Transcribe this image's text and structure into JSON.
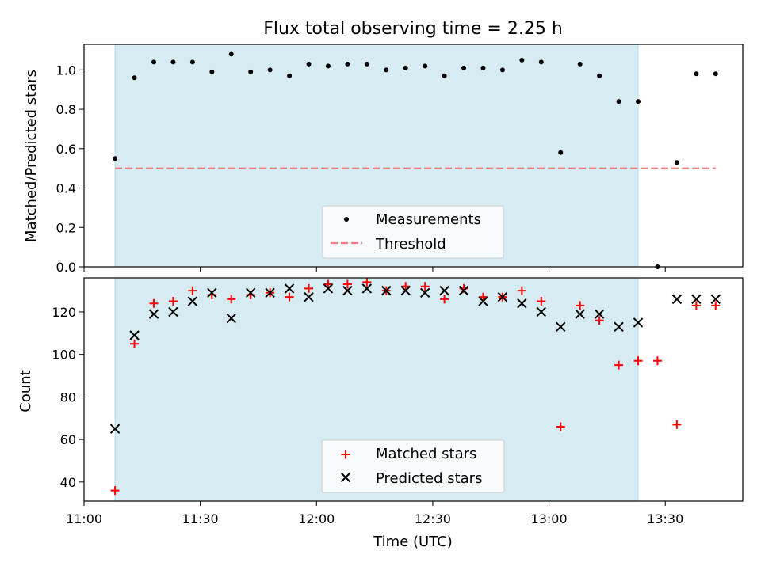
{
  "title": "Flux total observing time = 2.25 h",
  "colors": {
    "shade": "#add8e6",
    "threshold": "#f08080",
    "matched": "#ff0000",
    "predicted": "#000000",
    "measurement": "#000000"
  },
  "chart_data": [
    {
      "type": "scatter",
      "panel": "top",
      "title": "Flux total observing time = 2.25 h",
      "xlabel": "",
      "ylabel": "Matched/Predicted stars",
      "ylim": [
        0.0,
        1.13
      ],
      "yticks": [
        0.0,
        0.2,
        0.4,
        0.6,
        0.8,
        1.0
      ],
      "shaded_interval": [
        "11:08",
        "13:23"
      ],
      "legend": {
        "position": "lower center",
        "entries": [
          {
            "label": "Measurements",
            "marker": "dot"
          },
          {
            "label": "Threshold",
            "marker": "dashed-line"
          }
        ]
      },
      "threshold": {
        "value": 0.5,
        "x": [
          "11:08",
          "13:43"
        ]
      },
      "series": [
        {
          "name": "Measurements",
          "x": [
            "11:08",
            "11:13",
            "11:18",
            "11:23",
            "11:28",
            "11:33",
            "11:38",
            "11:43",
            "11:48",
            "11:53",
            "11:58",
            "12:03",
            "12:08",
            "12:13",
            "12:18",
            "12:23",
            "12:28",
            "12:33",
            "12:38",
            "12:43",
            "12:48",
            "12:53",
            "12:58",
            "13:03",
            "13:08",
            "13:13",
            "13:18",
            "13:23",
            "13:28",
            "13:33",
            "13:38",
            "13:43"
          ],
          "values": [
            0.55,
            0.96,
            1.04,
            1.04,
            1.04,
            0.99,
            1.08,
            0.99,
            1.0,
            0.97,
            1.03,
            1.02,
            1.03,
            1.03,
            1.0,
            1.01,
            1.02,
            0.97,
            1.01,
            1.01,
            1.0,
            1.05,
            1.04,
            0.58,
            1.03,
            0.97,
            0.84,
            0.84,
            0.0,
            0.53,
            0.98,
            0.98
          ]
        }
      ]
    },
    {
      "type": "scatter",
      "panel": "bottom",
      "xlabel": "Time (UTC)",
      "ylabel": "Count",
      "ylim": [
        31,
        136
      ],
      "yticks": [
        40,
        60,
        80,
        100,
        120
      ],
      "xlim": [
        "11:00",
        "13:50"
      ],
      "xticks": [
        "11:00",
        "11:30",
        "12:00",
        "12:30",
        "13:00",
        "13:30"
      ],
      "shaded_interval": [
        "11:08",
        "13:23"
      ],
      "legend": {
        "position": "lower center",
        "entries": [
          {
            "label": "Matched stars",
            "marker": "plus"
          },
          {
            "label": "Predicted stars",
            "marker": "x"
          }
        ]
      },
      "series": [
        {
          "name": "Matched stars",
          "x": [
            "11:08",
            "11:13",
            "11:18",
            "11:23",
            "11:28",
            "11:33",
            "11:38",
            "11:43",
            "11:48",
            "11:53",
            "11:58",
            "12:03",
            "12:08",
            "12:13",
            "12:18",
            "12:23",
            "12:28",
            "12:33",
            "12:38",
            "12:43",
            "12:48",
            "12:53",
            "12:58",
            "13:03",
            "13:08",
            "13:13",
            "13:18",
            "13:23",
            "13:28",
            "13:33",
            "13:38",
            "13:43"
          ],
          "values": [
            36,
            105,
            124,
            125,
            130,
            128,
            126,
            128,
            129,
            127,
            131,
            133,
            133,
            134,
            130,
            132,
            132,
            126,
            131,
            127,
            127,
            130,
            125,
            66,
            123,
            116,
            95,
            97,
            97,
            67,
            123,
            123
          ]
        },
        {
          "name": "Predicted stars",
          "x": [
            "11:08",
            "11:13",
            "11:18",
            "11:23",
            "11:28",
            "11:33",
            "11:38",
            "11:43",
            "11:48",
            "11:53",
            "11:58",
            "12:03",
            "12:08",
            "12:13",
            "12:18",
            "12:23",
            "12:28",
            "12:33",
            "12:38",
            "12:43",
            "12:48",
            "12:53",
            "12:58",
            "13:03",
            "13:08",
            "13:13",
            "13:18",
            "13:23",
            "13:33",
            "13:38",
            "13:43"
          ],
          "values": [
            65,
            109,
            119,
            120,
            125,
            129,
            117,
            129,
            129,
            131,
            127,
            131,
            130,
            131,
            130,
            130,
            129,
            130,
            130,
            125,
            127,
            124,
            120,
            113,
            119,
            119,
            113,
            115,
            126,
            126,
            126
          ]
        }
      ]
    }
  ]
}
